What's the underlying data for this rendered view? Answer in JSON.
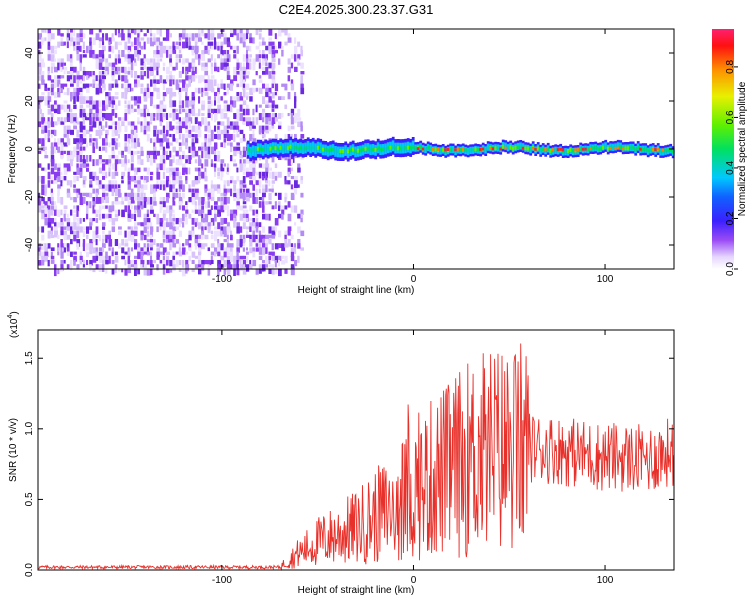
{
  "title": "C2E4.2025.300.23.37.G31",
  "colors": {
    "snr_line": "#e8302a",
    "noise_purple": "#8a3cf0",
    "colormap": [
      "#ffffff",
      "#c8b4f5",
      "#7a2cf0",
      "#2030ff",
      "#00c8ff",
      "#00e080",
      "#a0f000",
      "#f0e000",
      "#ff8000",
      "#ff1010",
      "#ff2060"
    ]
  },
  "chart_data": [
    {
      "type": "heatmap",
      "xlabel": "Height of straight line (km)",
      "ylabel": "Frequency (Hz)",
      "xlim": [
        -196,
        136
      ],
      "ylim": [
        -50,
        50
      ],
      "xticks": [
        -100,
        0,
        100
      ],
      "yticks": [
        -40,
        -20,
        0,
        20,
        40
      ],
      "description_regions": {
        "noise_band_x": [
          -196,
          -65
        ],
        "signal_start_x": -87,
        "signal_center_freq": 0
      },
      "colorbar": {
        "label": "Normalized spectral amplitude",
        "ticks": [
          0.0,
          0.2,
          0.4,
          0.6,
          0.8
        ],
        "range": [
          0,
          0.95
        ]
      }
    },
    {
      "type": "line",
      "xlabel": "Height of straight line (km)",
      "ylabel": "SNR (10 * v/v)",
      "multiplier_label": "(x10",
      "multiplier_exp": "4",
      "multiplier_close": ")",
      "xlim": [
        -196,
        136
      ],
      "ylim": [
        0,
        1.7
      ],
      "xticks": [
        -100,
        0,
        100
      ],
      "yticks": [
        "0.0",
        "0.5",
        "1.0",
        "1.5"
      ],
      "ytick_values": [
        0,
        0.5,
        1.0,
        1.5
      ],
      "series": [
        {
          "x": [
            -196,
            -150,
            -100,
            -70,
            -60,
            -50,
            -40,
            -30,
            -20,
            -10,
            0,
            10,
            20,
            30,
            40,
            50,
            60,
            70,
            80,
            90,
            100,
            110,
            120,
            130,
            136
          ],
          "y": [
            0.02,
            0.02,
            0.02,
            0.02,
            0.12,
            0.2,
            0.25,
            0.3,
            0.38,
            0.45,
            0.55,
            0.65,
            0.72,
            0.8,
            0.85,
            0.85,
            0.87,
            0.86,
            0.84,
            0.82,
            0.8,
            0.8,
            0.78,
            0.82,
            0.85
          ]
        }
      ]
    }
  ]
}
